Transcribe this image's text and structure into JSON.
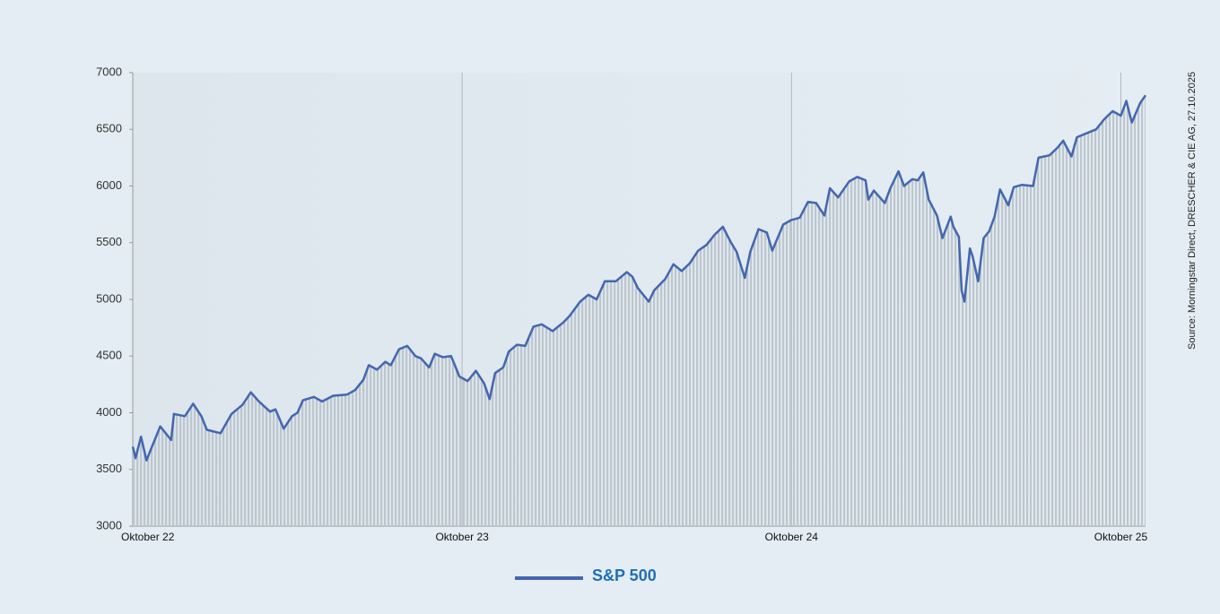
{
  "chart_data": {
    "type": "line",
    "source": "Source: Morningstar Direct, DRESCHER & CIE AG, 27.10.2025",
    "x": [
      0.0,
      0.1,
      0.3,
      0.5,
      0.7,
      1.0,
      1.4,
      1.5,
      1.9,
      2.2,
      2.5,
      2.7,
      3.2,
      3.6,
      4.0,
      4.3,
      4.6,
      5.0,
      5.2,
      5.5,
      5.8,
      6.0,
      6.2,
      6.6,
      6.9,
      7.3,
      7.8,
      8.1,
      8.4,
      8.6,
      8.9,
      9.2,
      9.4,
      9.7,
      10.0,
      10.3,
      10.5,
      10.8,
      11.0,
      11.3,
      11.6,
      11.9,
      12.2,
      12.5,
      12.8,
      13.0,
      13.2,
      13.5,
      13.7,
      14.0,
      14.3,
      14.6,
      14.9,
      15.3,
      15.7,
      15.9,
      16.3,
      16.6,
      16.9,
      17.2,
      17.6,
      18.0,
      18.2,
      18.4,
      18.8,
      19.0,
      19.4,
      19.7,
      20.0,
      20.3,
      20.6,
      20.9,
      21.2,
      21.5,
      21.8,
      22.0,
      22.3,
      22.5,
      22.8,
      23.1,
      23.3,
      23.7,
      24.0,
      24.3,
      24.6,
      24.9,
      25.2,
      25.4,
      25.7,
      26.1,
      26.4,
      26.7,
      26.8,
      27.0,
      27.4,
      27.6,
      27.9,
      28.1,
      28.4,
      28.6,
      28.8,
      29.0,
      29.3,
      29.5,
      29.8,
      29.9,
      30.1,
      30.2,
      30.3,
      30.5,
      30.6,
      30.8,
      31.0,
      31.2,
      31.4,
      31.6,
      31.9,
      32.1,
      32.4,
      32.8,
      33.0,
      33.4,
      33.7,
      33.9,
      34.2,
      34.4,
      34.7,
      35.1,
      35.4,
      35.7,
      36.0,
      36.2,
      36.4,
      36.7,
      36.9
    ],
    "series": [
      {
        "name": "S&P 500",
        "color": "#4466b0",
        "values": [
          3700,
          3600,
          3790,
          3580,
          3700,
          3880,
          3760,
          3990,
          3970,
          4080,
          3970,
          3850,
          3820,
          3990,
          4070,
          4180,
          4100,
          4010,
          4030,
          3860,
          3970,
          4000,
          4110,
          4140,
          4100,
          4150,
          4160,
          4200,
          4290,
          4420,
          4380,
          4450,
          4420,
          4560,
          4590,
          4500,
          4480,
          4400,
          4520,
          4490,
          4500,
          4320,
          4280,
          4370,
          4260,
          4120,
          4350,
          4400,
          4540,
          4600,
          4590,
          4760,
          4780,
          4720,
          4800,
          4850,
          4980,
          5040,
          5000,
          5160,
          5160,
          5240,
          5200,
          5100,
          4980,
          5080,
          5180,
          5310,
          5250,
          5320,
          5430,
          5480,
          5570,
          5640,
          5500,
          5420,
          5190,
          5420,
          5620,
          5590,
          5430,
          5660,
          5700,
          5720,
          5860,
          5850,
          5740,
          5980,
          5900,
          6040,
          6080,
          6050,
          5880,
          5960,
          5850,
          5980,
          6130,
          6000,
          6060,
          6050,
          6120,
          5880,
          5740,
          5540,
          5730,
          5640,
          5550,
          5080,
          4980,
          5450,
          5380,
          5160,
          5540,
          5600,
          5730,
          5970,
          5830,
          5990,
          6010,
          6000,
          6250,
          6270,
          6340,
          6400,
          6260,
          6430,
          6460,
          6500,
          6590,
          6660,
          6620,
          6750,
          6560,
          6730,
          6800
        ]
      }
    ],
    "xlim": [
      0,
      36.9
    ],
    "xticks": [
      {
        "value": 0,
        "label": "Oktober 22"
      },
      {
        "value": 12,
        "label": "Oktober 23"
      },
      {
        "value": 24,
        "label": "Oktober 24"
      },
      {
        "value": 36,
        "label": "Oktober 25"
      }
    ],
    "ylim": [
      3000,
      7000
    ],
    "yticks": [
      3000,
      3500,
      4000,
      4500,
      5000,
      5500,
      6000,
      6500,
      7000
    ],
    "grid": true,
    "fill_color": "#bcc6cc"
  }
}
